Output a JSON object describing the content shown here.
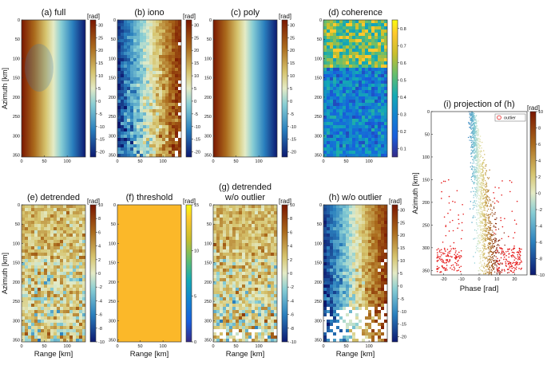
{
  "chart_data": {
    "type": "heatmap",
    "panels": [
      {
        "id": "a",
        "title": "(a) full",
        "colormap": "roma",
        "unit": "[rad]",
        "cbar_ticks": [
          -20,
          -15,
          -10,
          -5,
          0,
          5,
          10,
          15,
          20,
          25,
          30
        ],
        "clim": [
          -22,
          32
        ],
        "yticks": [
          0,
          50,
          100,
          150,
          200,
          250,
          300,
          350
        ],
        "xticks": [
          0,
          50,
          100
        ],
        "ylabel": "Azimuth [km]",
        "xlabel": ""
      },
      {
        "id": "b",
        "title": "(b) iono",
        "colormap": "roma",
        "unit": "[rad]",
        "cbar_ticks": [
          -20,
          -15,
          -10,
          -5,
          0,
          5,
          10,
          15,
          20,
          25,
          30
        ],
        "clim": [
          -22,
          32
        ],
        "yticks": [
          0,
          50,
          100,
          150,
          200,
          250,
          300,
          350
        ],
        "xticks": [
          0,
          50,
          100
        ],
        "ylabel": "",
        "xlabel": ""
      },
      {
        "id": "c",
        "title": "(c) poly",
        "colormap": "roma",
        "unit": "[rad]",
        "cbar_ticks": [
          -20,
          -15,
          -10,
          -5,
          0,
          5,
          10,
          15,
          20,
          25,
          30
        ],
        "clim": [
          -22,
          32
        ],
        "yticks": [
          0,
          50,
          100,
          150,
          200,
          250,
          300,
          350
        ],
        "xticks": [
          0,
          50,
          100
        ],
        "ylabel": "",
        "xlabel": ""
      },
      {
        "id": "d",
        "title": "(d) coherence",
        "colormap": "parula",
        "unit": "",
        "cbar_ticks": [
          0.1,
          0.2,
          0.3,
          0.4,
          0.5,
          0.6,
          0.7,
          0.8
        ],
        "clim": [
          0.05,
          0.85
        ],
        "yticks": [
          0,
          50,
          100,
          150,
          200,
          250,
          300,
          350
        ],
        "xticks": [
          0,
          50,
          100
        ],
        "ylabel": "",
        "xlabel": ""
      },
      {
        "id": "e",
        "title": "(e) detrended",
        "colormap": "roma",
        "unit": "[rad]",
        "cbar_ticks": [
          -10,
          -8,
          -6,
          -4,
          -2,
          0,
          2,
          4,
          6,
          8,
          10
        ],
        "clim": [
          -10,
          10
        ],
        "yticks": [
          0,
          50,
          100,
          150,
          200,
          250,
          300,
          350
        ],
        "xticks": [
          0,
          50,
          100
        ],
        "ylabel": "Azimuth [km]",
        "xlabel": "Range [km]"
      },
      {
        "id": "f",
        "title": "(f) threshold",
        "colormap": "parula",
        "unit": "[rad]",
        "cbar_ticks": [
          0,
          5,
          10,
          15
        ],
        "clim": [
          0,
          15
        ],
        "yticks": [
          0,
          50,
          100,
          150,
          200,
          250,
          300,
          350
        ],
        "xticks": [
          0,
          50,
          100
        ],
        "ylabel": "",
        "xlabel": "Range [km]"
      },
      {
        "id": "g",
        "title": "(g) detrended\nw/o outlier",
        "colormap": "roma",
        "unit": "[rad]",
        "cbar_ticks": [
          -10,
          -8,
          -6,
          -4,
          -2,
          0,
          2,
          4,
          6,
          8,
          10
        ],
        "clim": [
          -10,
          10
        ],
        "yticks": [
          0,
          50,
          100,
          150,
          200,
          250,
          300,
          350
        ],
        "xticks": [
          0,
          50,
          100
        ],
        "ylabel": "",
        "xlabel": "Range [km]"
      },
      {
        "id": "h",
        "title": "(h) w/o outlier",
        "colormap": "roma",
        "unit": "[rad]",
        "cbar_ticks": [
          -20,
          -15,
          -10,
          -5,
          0,
          5,
          10,
          15,
          20,
          25,
          30
        ],
        "clim": [
          -22,
          32
        ],
        "yticks": [
          0,
          50,
          100,
          150,
          200,
          250,
          300,
          350
        ],
        "xticks": [
          0,
          50,
          100
        ],
        "ylabel": "",
        "xlabel": "Range [km]"
      }
    ],
    "projection": {
      "type": "scatter",
      "title": "(i) projection of (h)",
      "xlabel": "Phase [rad]",
      "ylabel": "Azimuth [km]",
      "xticks": [
        -20,
        -10,
        0,
        10,
        20
      ],
      "yticks": [
        0,
        50,
        100,
        150,
        200,
        250,
        300,
        350
      ],
      "xlim": [
        -27,
        27
      ],
      "ylim": [
        0,
        360
      ],
      "legend": "outlier",
      "legend_position": "top-right",
      "unit": "[rad]",
      "cbar_ticks": [
        -10,
        -8,
        -6,
        -4,
        -2,
        0,
        2,
        4,
        6,
        8,
        10
      ],
      "clim": [
        -10,
        10
      ]
    }
  }
}
